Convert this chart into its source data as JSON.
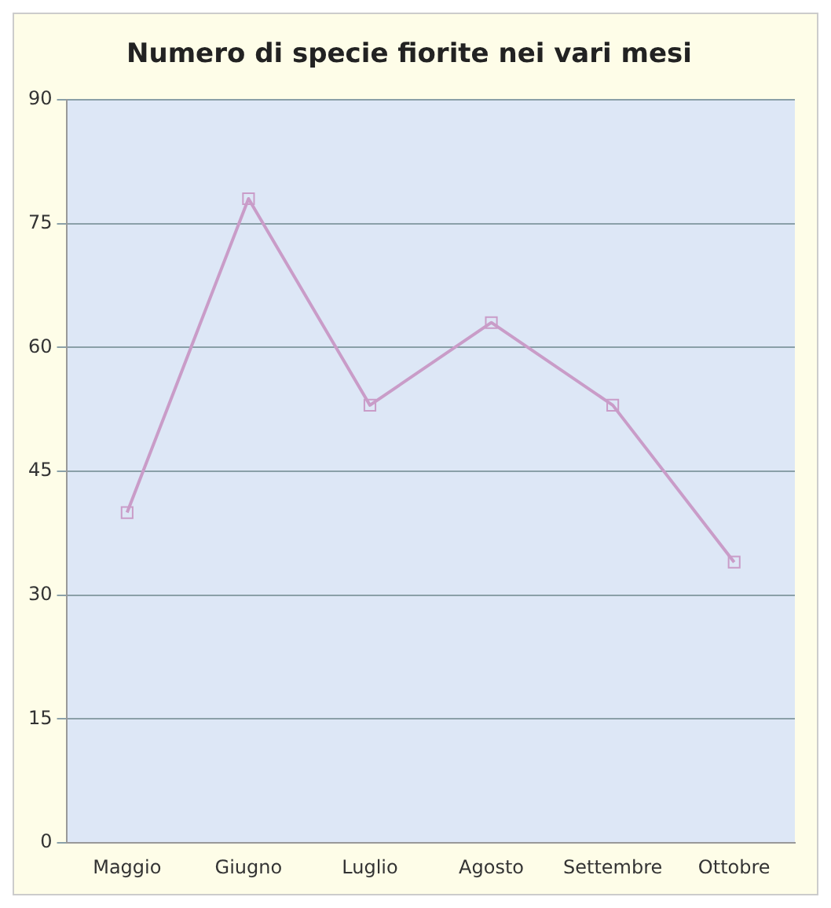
{
  "chart_data": {
    "type": "line",
    "title": "Numero di specie fiorite nei vari mesi",
    "categories": [
      "Maggio",
      "Giugno",
      "Luglio",
      "Agosto",
      "Settembre",
      "Ottobre"
    ],
    "series": [
      {
        "color": "#c99cc8",
        "values": [
          40,
          78,
          53,
          63,
          53,
          34
        ]
      }
    ],
    "ylim": [
      0,
      90
    ],
    "yticks": [
      0,
      15,
      30,
      45,
      60,
      75,
      90
    ],
    "grid": "y",
    "marker": "square",
    "legend": false
  }
}
